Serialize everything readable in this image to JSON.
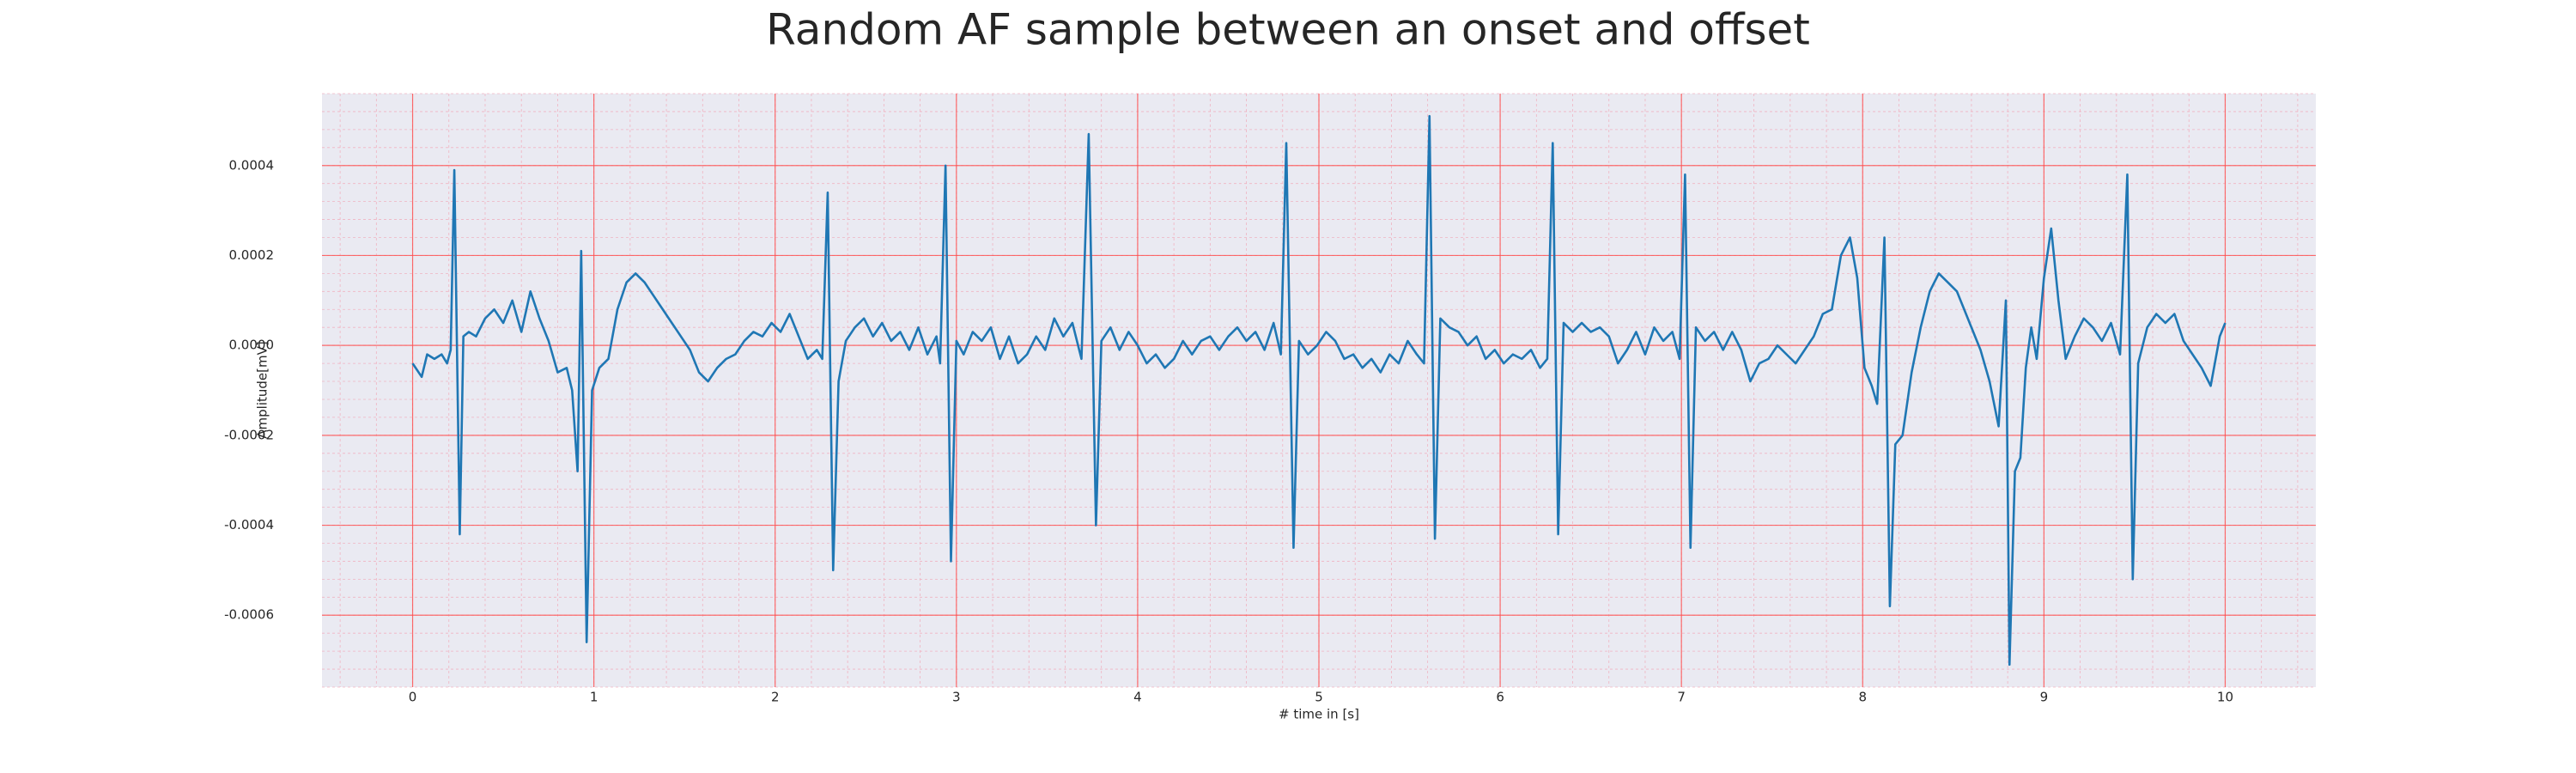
{
  "chart_data": {
    "type": "line",
    "title": "Random AF sample between an onset and offset",
    "xlabel": "# time in [s]",
    "ylabel": "Amplitude[mV]",
    "color": "#1f77b4",
    "grid": true,
    "minor_grid": true,
    "xlim": [
      -0.5,
      10.5
    ],
    "ylim": [
      -0.00076,
      0.00056
    ],
    "xticks": [
      0,
      1,
      2,
      3,
      4,
      5,
      6,
      7,
      8,
      9,
      10
    ],
    "yticks": [
      -0.0006,
      -0.0004,
      -0.0002,
      {
        "value": 0,
        "label": "0.0000"
      },
      0.0002,
      0.0004
    ],
    "x": [
      0.0,
      0.05,
      0.08,
      0.12,
      0.16,
      0.19,
      0.21,
      0.23,
      0.26,
      0.28,
      0.31,
      0.35,
      0.4,
      0.45,
      0.5,
      0.55,
      0.6,
      0.65,
      0.7,
      0.75,
      0.8,
      0.85,
      0.88,
      0.91,
      0.93,
      0.96,
      0.99,
      1.03,
      1.08,
      1.13,
      1.18,
      1.23,
      1.28,
      1.33,
      1.38,
      1.43,
      1.48,
      1.53,
      1.58,
      1.63,
      1.68,
      1.73,
      1.78,
      1.83,
      1.88,
      1.93,
      1.98,
      2.03,
      2.08,
      2.13,
      2.18,
      2.23,
      2.26,
      2.29,
      2.32,
      2.35,
      2.39,
      2.44,
      2.49,
      2.54,
      2.59,
      2.64,
      2.69,
      2.74,
      2.79,
      2.84,
      2.89,
      2.91,
      2.94,
      2.97,
      3.0,
      3.04,
      3.09,
      3.14,
      3.19,
      3.24,
      3.29,
      3.34,
      3.39,
      3.44,
      3.49,
      3.54,
      3.59,
      3.64,
      3.69,
      3.73,
      3.77,
      3.8,
      3.85,
      3.9,
      3.95,
      4.0,
      4.05,
      4.1,
      4.15,
      4.2,
      4.25,
      4.3,
      4.35,
      4.4,
      4.45,
      4.5,
      4.55,
      4.6,
      4.65,
      4.7,
      4.75,
      4.79,
      4.82,
      4.86,
      4.89,
      4.94,
      4.99,
      5.04,
      5.09,
      5.14,
      5.19,
      5.24,
      5.29,
      5.34,
      5.39,
      5.44,
      5.49,
      5.54,
      5.58,
      5.61,
      5.64,
      5.67,
      5.72,
      5.77,
      5.82,
      5.87,
      5.92,
      5.97,
      6.02,
      6.07,
      6.12,
      6.17,
      6.22,
      6.26,
      6.29,
      6.32,
      6.35,
      6.4,
      6.45,
      6.5,
      6.55,
      6.6,
      6.65,
      6.7,
      6.75,
      6.8,
      6.85,
      6.9,
      6.95,
      6.99,
      7.02,
      7.05,
      7.08,
      7.13,
      7.18,
      7.23,
      7.28,
      7.33,
      7.38,
      7.43,
      7.48,
      7.53,
      7.58,
      7.63,
      7.68,
      7.73,
      7.78,
      7.83,
      7.88,
      7.93,
      7.97,
      8.01,
      8.05,
      8.08,
      8.12,
      8.15,
      8.18,
      8.22,
      8.27,
      8.32,
      8.37,
      8.42,
      8.47,
      8.52,
      8.56,
      8.6,
      8.65,
      8.7,
      8.75,
      8.79,
      8.81,
      8.84,
      8.87,
      8.9,
      8.93,
      8.96,
      9.0,
      9.04,
      9.08,
      9.12,
      9.17,
      9.22,
      9.27,
      9.32,
      9.37,
      9.42,
      9.46,
      9.49,
      9.52,
      9.57,
      9.62,
      9.67,
      9.72,
      9.77,
      9.82,
      9.87,
      9.92,
      9.97,
      10.0
    ],
    "values": [
      -4e-05,
      -7e-05,
      -2e-05,
      -3e-05,
      -2e-05,
      -4e-05,
      -1e-05,
      0.00039,
      -0.00042,
      2e-05,
      3e-05,
      2e-05,
      6e-05,
      8e-05,
      5e-05,
      0.0001,
      3e-05,
      0.00012,
      6e-05,
      1e-05,
      -6e-05,
      -5e-05,
      -0.0001,
      -0.00028,
      0.00021,
      -0.00066,
      -0.0001,
      -5e-05,
      -3e-05,
      8e-05,
      0.00014,
      0.00016,
      0.00014,
      0.00011,
      8e-05,
      5e-05,
      2e-05,
      -1e-05,
      -6e-05,
      -8e-05,
      -5e-05,
      -3e-05,
      -2e-05,
      1e-05,
      3e-05,
      2e-05,
      5e-05,
      3e-05,
      7e-05,
      2e-05,
      -3e-05,
      -1e-05,
      -3e-05,
      0.00034,
      -0.0005,
      -8e-05,
      1e-05,
      4e-05,
      6e-05,
      2e-05,
      5e-05,
      1e-05,
      3e-05,
      -1e-05,
      4e-05,
      -2e-05,
      2e-05,
      -4e-05,
      0.0004,
      -0.00048,
      1e-05,
      -2e-05,
      3e-05,
      1e-05,
      4e-05,
      -3e-05,
      2e-05,
      -4e-05,
      -2e-05,
      2e-05,
      -1e-05,
      6e-05,
      2e-05,
      5e-05,
      -3e-05,
      0.00047,
      -0.0004,
      1e-05,
      4e-05,
      -1e-05,
      3e-05,
      0.0,
      -4e-05,
      -2e-05,
      -5e-05,
      -3e-05,
      1e-05,
      -2e-05,
      1e-05,
      2e-05,
      -1e-05,
      2e-05,
      4e-05,
      1e-05,
      3e-05,
      -1e-05,
      5e-05,
      -2e-05,
      0.00045,
      -0.00045,
      1e-05,
      -2e-05,
      0.0,
      3e-05,
      1e-05,
      -3e-05,
      -2e-05,
      -5e-05,
      -3e-05,
      -6e-05,
      -2e-05,
      -4e-05,
      1e-05,
      -2e-05,
      -4e-05,
      0.00051,
      -0.00043,
      6e-05,
      4e-05,
      3e-05,
      0.0,
      2e-05,
      -3e-05,
      -1e-05,
      -4e-05,
      -2e-05,
      -3e-05,
      -1e-05,
      -5e-05,
      -3e-05,
      0.00045,
      -0.00042,
      5e-05,
      3e-05,
      5e-05,
      3e-05,
      4e-05,
      2e-05,
      -4e-05,
      -1e-05,
      3e-05,
      -2e-05,
      4e-05,
      1e-05,
      3e-05,
      -3e-05,
      0.00038,
      -0.00045,
      4e-05,
      1e-05,
      3e-05,
      -1e-05,
      3e-05,
      -1e-05,
      -8e-05,
      -4e-05,
      -3e-05,
      0.0,
      -2e-05,
      -4e-05,
      -1e-05,
      2e-05,
      7e-05,
      8e-05,
      0.0002,
      0.00024,
      0.00015,
      -5e-05,
      -9e-05,
      -0.00013,
      0.00024,
      -0.00058,
      -0.00022,
      -0.0002,
      -6e-05,
      4e-05,
      0.00012,
      0.00016,
      0.00014,
      0.00012,
      8e-05,
      4e-05,
      -1e-05,
      -8e-05,
      -0.00018,
      0.0001,
      -0.00071,
      -0.00028,
      -0.00025,
      -5e-05,
      4e-05,
      -3e-05,
      0.00015,
      0.00026,
      0.0001,
      -3e-05,
      2e-05,
      6e-05,
      4e-05,
      1e-05,
      5e-05,
      -2e-05,
      0.00038,
      -0.00052,
      -4e-05,
      4e-05,
      7e-05,
      5e-05,
      7e-05,
      1e-05,
      -2e-05,
      -5e-05,
      -9e-05,
      2e-05,
      5e-05
    ]
  }
}
